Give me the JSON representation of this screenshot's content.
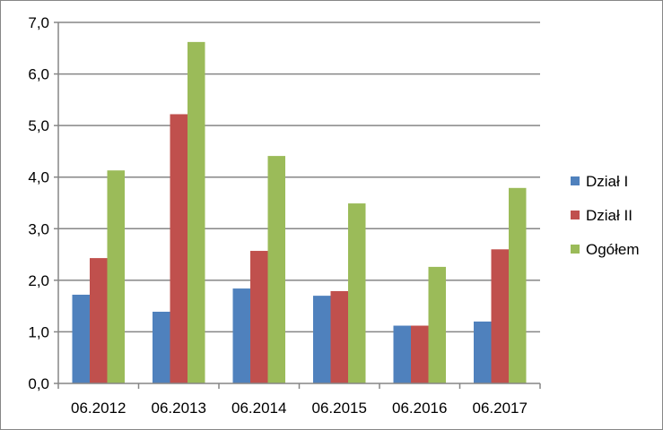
{
  "chart_data": {
    "type": "bar",
    "title": "",
    "xlabel": "",
    "ylabel": "",
    "categories": [
      "06.2012",
      "06.2013",
      "06.2014",
      "06.2015",
      "06.2016",
      "06.2017"
    ],
    "series": [
      {
        "name": "Dział I",
        "color": "#4F81BD",
        "values": [
          1.72,
          1.39,
          1.84,
          1.7,
          1.12,
          1.2
        ]
      },
      {
        "name": "Dział II",
        "color": "#C0504D",
        "values": [
          2.43,
          5.22,
          2.57,
          1.79,
          1.12,
          2.6
        ]
      },
      {
        "name": "Ogółem",
        "color": "#9BBB59",
        "values": [
          4.13,
          6.62,
          4.41,
          3.49,
          2.26,
          3.79
        ]
      }
    ],
    "ylim": [
      0,
      7
    ],
    "yticks": [
      "0,0",
      "1,0",
      "2,0",
      "3,0",
      "4,0",
      "5,0",
      "6,0",
      "7,0"
    ],
    "grid": true,
    "legend_position": "right"
  }
}
